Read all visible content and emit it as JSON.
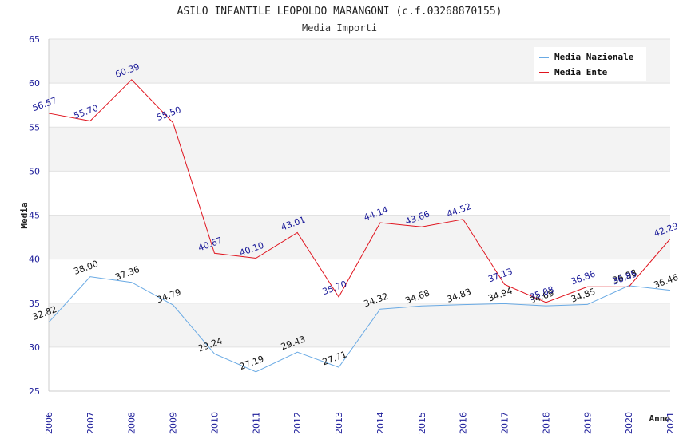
{
  "chart_data": {
    "type": "line",
    "title": "ASILO INFANTILE LEOPOLDO MARANGONI (c.f.03268870155)",
    "subtitle": "Media Importi",
    "xlabel": "Anno",
    "ylabel": "Media",
    "ylim": [
      25,
      65
    ],
    "yticks": [
      "25",
      "30",
      "35",
      "40",
      "45",
      "50",
      "55",
      "60",
      "65"
    ],
    "categories": [
      "2006",
      "2007",
      "2008",
      "2009",
      "2010",
      "2011",
      "2012",
      "2013",
      "2014",
      "2015",
      "2016",
      "2017",
      "2018",
      "2019",
      "2020",
      "2021"
    ],
    "grid": "horizontal bands",
    "legend_position": "top-right",
    "series": [
      {
        "name": "Media Nazionale",
        "color": "#6aaae4",
        "values": [
          32.82,
          38.0,
          37.36,
          34.79,
          29.24,
          27.19,
          29.43,
          27.71,
          34.32,
          34.68,
          34.83,
          34.94,
          34.69,
          34.85,
          36.98,
          36.46
        ],
        "labels": [
          "32.82",
          "38.00",
          "37.36",
          "34.79",
          "29.24",
          "27.19",
          "29.43",
          "27.71",
          "34.32",
          "34.68",
          "34.83",
          "34.94",
          "34.69",
          "34.85",
          "36.98",
          "36.46"
        ]
      },
      {
        "name": "Media Ente",
        "color": "#e0141e",
        "values": [
          56.57,
          55.7,
          60.39,
          55.5,
          40.67,
          40.1,
          43.01,
          35.7,
          44.14,
          43.66,
          44.52,
          37.13,
          35.08,
          36.86,
          36.85,
          42.29
        ],
        "labels": [
          "56.57",
          "55.70",
          "60.39",
          "55.50",
          "40.67",
          "40.10",
          "43.01",
          "35.70",
          "44.14",
          "43.66",
          "44.52",
          "37.13",
          "35.08",
          "36.86",
          "36.85",
          "42.29"
        ]
      }
    ]
  }
}
